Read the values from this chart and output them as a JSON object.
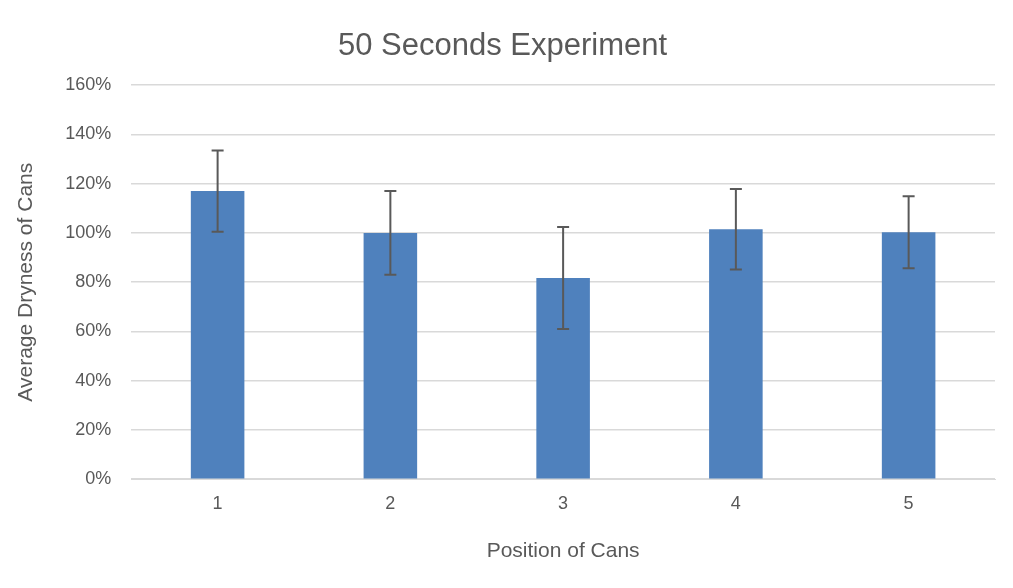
{
  "chart_data": {
    "type": "bar",
    "title": "50 Seconds Experiment",
    "xlabel": "Position of Cans",
    "ylabel": "Average Dryness of Cans",
    "categories": [
      "1",
      "2",
      "3",
      "4",
      "5"
    ],
    "values": [
      117,
      100,
      81.7,
      101.5,
      100.3
    ],
    "errors": [
      16.5,
      17,
      20.7,
      16.3,
      14.6
    ],
    "color": "#4f81bd",
    "ylim": [
      0,
      160
    ],
    "yticks": [
      {
        "value": 0,
        "label": "0%"
      },
      {
        "value": 20,
        "label": "20%"
      },
      {
        "value": 40,
        "label": "40%"
      },
      {
        "value": 60,
        "label": "60%"
      },
      {
        "value": 80,
        "label": "80%"
      },
      {
        "value": 100,
        "label": "100%"
      },
      {
        "value": 120,
        "label": "120%"
      },
      {
        "value": 140,
        "label": "140%"
      },
      {
        "value": 160,
        "label": "160%"
      }
    ],
    "grid": "y"
  }
}
